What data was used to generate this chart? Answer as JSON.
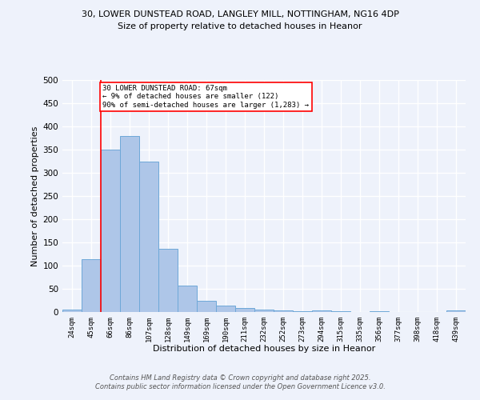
{
  "title_line1": "30, LOWER DUNSTEAD ROAD, LANGLEY MILL, NOTTINGHAM, NG16 4DP",
  "title_line2": "Size of property relative to detached houses in Heanor",
  "xlabel": "Distribution of detached houses by size in Heanor",
  "ylabel": "Number of detached properties",
  "categories": [
    "24sqm",
    "45sqm",
    "66sqm",
    "86sqm",
    "107sqm",
    "128sqm",
    "149sqm",
    "169sqm",
    "190sqm",
    "211sqm",
    "232sqm",
    "252sqm",
    "273sqm",
    "294sqm",
    "315sqm",
    "335sqm",
    "356sqm",
    "377sqm",
    "398sqm",
    "418sqm",
    "439sqm"
  ],
  "values": [
    5,
    113,
    350,
    380,
    325,
    136,
    57,
    25,
    13,
    9,
    6,
    4,
    2,
    4,
    1,
    0,
    1,
    0,
    0,
    0,
    3
  ],
  "bar_color": "#aec6e8",
  "bar_edge_color": "#6ea8d8",
  "vline_x": 2,
  "vline_color": "red",
  "annotation_text": "30 LOWER DUNSTEAD ROAD: 67sqm\n← 9% of detached houses are smaller (122)\n90% of semi-detached houses are larger (1,283) →",
  "annotation_box_color": "white",
  "annotation_box_edge_color": "red",
  "ylim": [
    0,
    500
  ],
  "yticks": [
    0,
    50,
    100,
    150,
    200,
    250,
    300,
    350,
    400,
    450,
    500
  ],
  "footer_line1": "Contains HM Land Registry data © Crown copyright and database right 2025.",
  "footer_line2": "Contains public sector information licensed under the Open Government Licence v3.0.",
  "bg_color": "#eef2fb",
  "grid_color": "white"
}
